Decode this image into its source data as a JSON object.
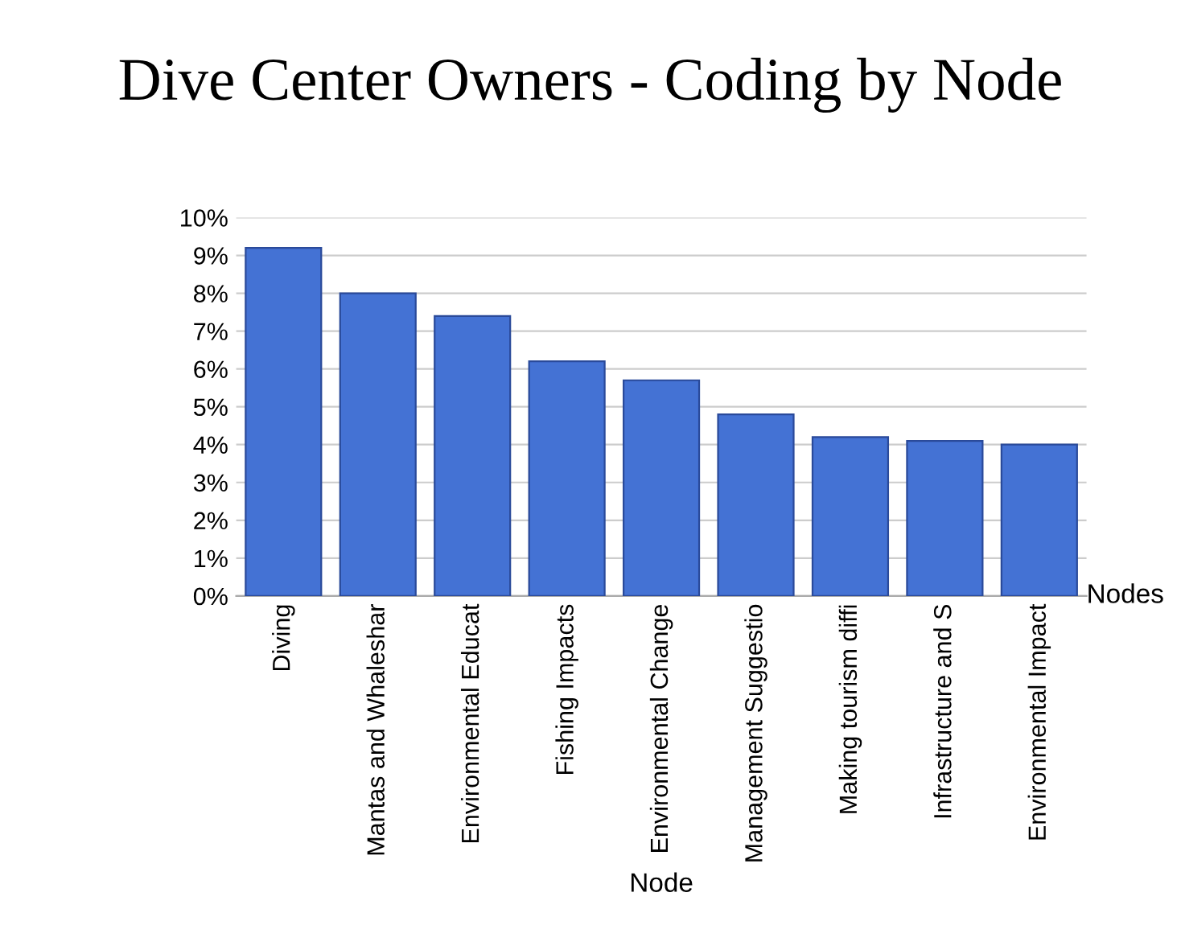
{
  "chart_data": {
    "type": "bar",
    "title": "Dive Center Owners - Coding by Node",
    "xlabel": "Node",
    "categories": [
      "Diving",
      "Mantas and Whaleshar",
      "Environmental Educat",
      "Fishing Impacts",
      "Environmental Change",
      "Management Suggestio",
      "Making tourism diffi",
      "Infrastructure and S",
      "Environmental Impact"
    ],
    "values": [
      9.2,
      8.0,
      7.4,
      6.2,
      5.7,
      4.8,
      4.2,
      4.1,
      4.0
    ],
    "color": "#4472d4",
    "ylim": [
      0,
      10
    ],
    "yticks": [
      {
        "value": 0,
        "label": "0%"
      },
      {
        "value": 1,
        "label": "1%"
      },
      {
        "value": 2,
        "label": "2%"
      },
      {
        "value": 3,
        "label": "3%"
      },
      {
        "value": 4,
        "label": "4%"
      },
      {
        "value": 5,
        "label": "5%"
      },
      {
        "value": 6,
        "label": "6%"
      },
      {
        "value": 7,
        "label": "7%"
      },
      {
        "value": 8,
        "label": "8%"
      },
      {
        "value": 9,
        "label": "9%"
      },
      {
        "value": 10,
        "label": "10%"
      }
    ],
    "grid": "y",
    "annotations": [
      "Nodes"
    ]
  }
}
